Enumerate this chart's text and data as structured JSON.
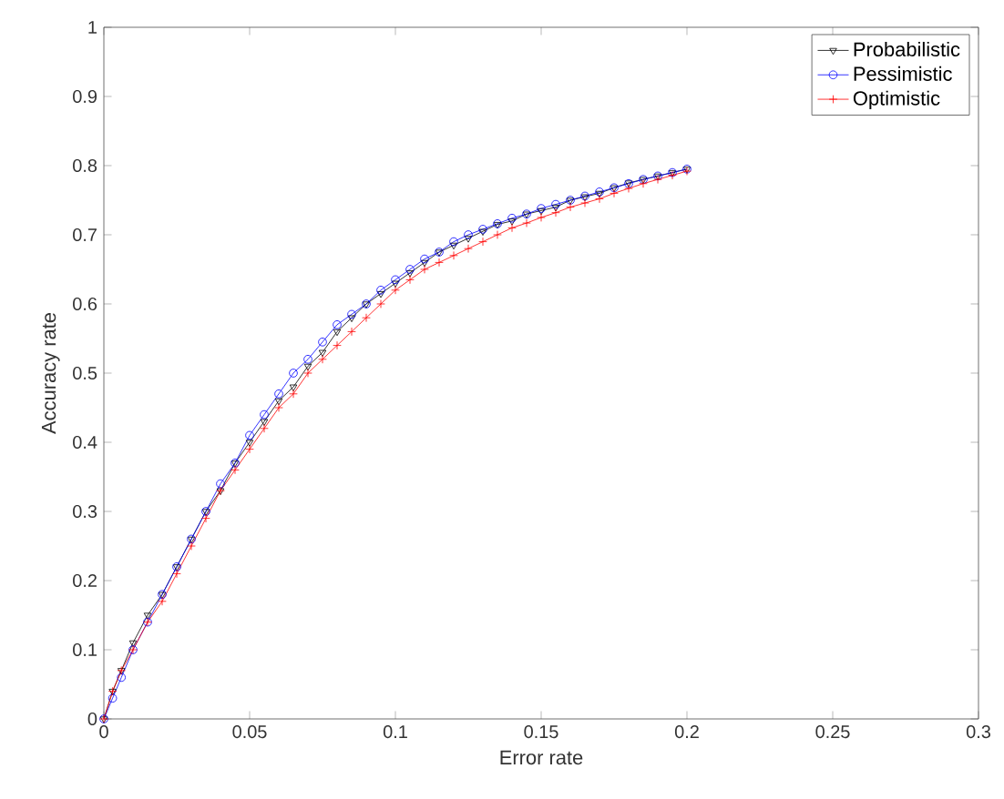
{
  "chart_data": {
    "type": "line",
    "xlabel": "Error rate",
    "ylabel": "Accuracy rate",
    "xlim": [
      0,
      0.3
    ],
    "ylim": [
      0,
      1
    ],
    "xticks": [
      0,
      0.05,
      0.1,
      0.15,
      0.2,
      0.25,
      0.3
    ],
    "yticks": [
      0,
      0.1,
      0.2,
      0.3,
      0.4,
      0.5,
      0.6,
      0.7,
      0.8,
      0.9,
      1
    ],
    "legend": "top right",
    "grid": false,
    "series": [
      {
        "name": "Probabilistic",
        "color": "#000000",
        "marker": "triangle",
        "x": [
          0,
          0.003,
          0.006,
          0.01,
          0.015,
          0.02,
          0.025,
          0.03,
          0.035,
          0.04,
          0.045,
          0.05,
          0.055,
          0.06,
          0.065,
          0.07,
          0.075,
          0.08,
          0.085,
          0.09,
          0.095,
          0.1,
          0.105,
          0.11,
          0.115,
          0.12,
          0.125,
          0.13,
          0.135,
          0.14,
          0.145,
          0.15,
          0.155,
          0.16,
          0.165,
          0.17,
          0.175,
          0.18,
          0.185,
          0.19,
          0.195,
          0.2
        ],
        "values": [
          0,
          0.04,
          0.07,
          0.11,
          0.15,
          0.18,
          0.22,
          0.26,
          0.3,
          0.33,
          0.37,
          0.4,
          0.43,
          0.46,
          0.48,
          0.51,
          0.53,
          0.56,
          0.58,
          0.6,
          0.615,
          0.63,
          0.645,
          0.66,
          0.675,
          0.685,
          0.695,
          0.705,
          0.715,
          0.72,
          0.73,
          0.735,
          0.74,
          0.75,
          0.755,
          0.76,
          0.768,
          0.775,
          0.78,
          0.785,
          0.79,
          0.795
        ]
      },
      {
        "name": "Pessimistic",
        "color": "#0000ff",
        "marker": "circle",
        "x": [
          0,
          0.003,
          0.006,
          0.01,
          0.015,
          0.02,
          0.025,
          0.03,
          0.035,
          0.04,
          0.045,
          0.05,
          0.055,
          0.06,
          0.065,
          0.07,
          0.075,
          0.08,
          0.085,
          0.09,
          0.095,
          0.1,
          0.105,
          0.11,
          0.115,
          0.12,
          0.125,
          0.13,
          0.135,
          0.14,
          0.145,
          0.15,
          0.155,
          0.16,
          0.165,
          0.17,
          0.175,
          0.18,
          0.185,
          0.19,
          0.195,
          0.2
        ],
        "values": [
          0,
          0.03,
          0.06,
          0.1,
          0.14,
          0.18,
          0.22,
          0.26,
          0.3,
          0.34,
          0.37,
          0.41,
          0.44,
          0.47,
          0.5,
          0.52,
          0.545,
          0.57,
          0.585,
          0.6,
          0.62,
          0.635,
          0.65,
          0.665,
          0.675,
          0.69,
          0.7,
          0.708,
          0.716,
          0.724,
          0.73,
          0.738,
          0.744,
          0.75,
          0.756,
          0.762,
          0.768,
          0.774,
          0.78,
          0.785,
          0.79,
          0.795
        ]
      },
      {
        "name": "Optimistic",
        "color": "#ff0000",
        "marker": "cross",
        "x": [
          0,
          0.003,
          0.006,
          0.01,
          0.015,
          0.02,
          0.025,
          0.03,
          0.035,
          0.04,
          0.045,
          0.05,
          0.055,
          0.06,
          0.065,
          0.07,
          0.075,
          0.08,
          0.085,
          0.09,
          0.095,
          0.1,
          0.105,
          0.11,
          0.115,
          0.12,
          0.125,
          0.13,
          0.135,
          0.14,
          0.145,
          0.15,
          0.155,
          0.16,
          0.165,
          0.17,
          0.175,
          0.18,
          0.185,
          0.19,
          0.195,
          0.2
        ],
        "values": [
          0,
          0.04,
          0.07,
          0.1,
          0.14,
          0.17,
          0.21,
          0.25,
          0.29,
          0.33,
          0.36,
          0.39,
          0.42,
          0.45,
          0.47,
          0.5,
          0.52,
          0.54,
          0.56,
          0.58,
          0.6,
          0.62,
          0.635,
          0.65,
          0.66,
          0.67,
          0.68,
          0.69,
          0.7,
          0.71,
          0.717,
          0.725,
          0.732,
          0.74,
          0.746,
          0.752,
          0.76,
          0.767,
          0.774,
          0.78,
          0.786,
          0.792
        ]
      }
    ]
  }
}
